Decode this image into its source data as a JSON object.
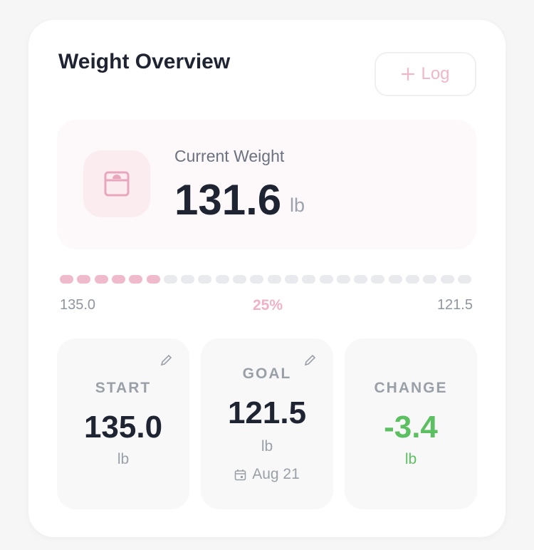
{
  "header": {
    "title": "Weight Overview",
    "button": "Log"
  },
  "current": {
    "label": "Current Weight",
    "value": "131.6",
    "unit": "lb"
  },
  "progress": {
    "start": "135.0",
    "percent": "25%",
    "goal": "121.5"
  },
  "cards": [
    {
      "label": "START",
      "value": "135.0",
      "unit": "lb"
    },
    {
      "label": "GOAL",
      "value": "121.5",
      "unit": "lb",
      "date": "Aug 21"
    },
    {
      "label": "CHANGE",
      "value": "-3.4",
      "unit": "lb"
    }
  ]
}
